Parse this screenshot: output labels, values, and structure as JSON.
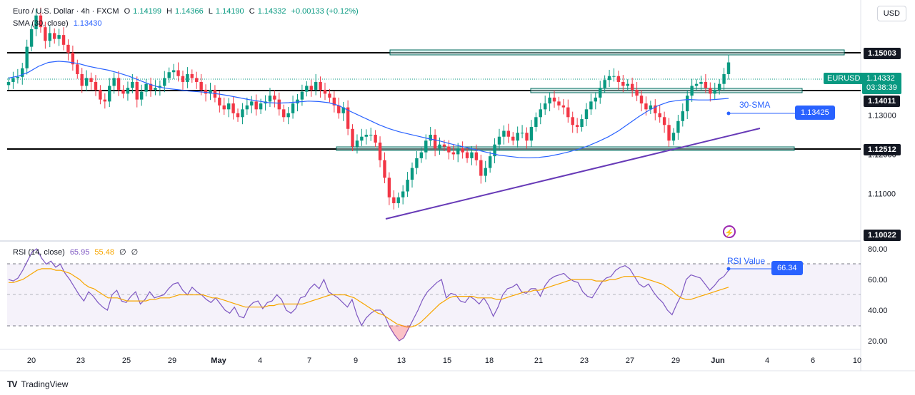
{
  "header": {
    "symbol": "Euro / U.S. Dollar · 4h · FXCM",
    "o_label": "O",
    "o": "1.14199",
    "h_label": "H",
    "h": "1.14366",
    "l_label": "L",
    "l": "1.14190",
    "c_label": "C",
    "c": "1.14332",
    "change": "+0.00133 (+0.12%)",
    "sma_label": "SMA (30, close)",
    "sma_value": "1.13430",
    "rsi_label": "RSI (14, close)",
    "rsi_value": "65.95",
    "rsi_ma": "55.48",
    "rsi_x1": "∅",
    "rsi_x2": "∅"
  },
  "currency_button": "USD",
  "price_tag": {
    "symbol": "EURUSD",
    "price": "1.14332",
    "countdown": "03:38:39"
  },
  "levels": [
    "1.15003",
    "1.14011",
    "1.12512",
    "1.10022"
  ],
  "annotations": {
    "sma_label": "30-SMA",
    "sma_value": "1.13425",
    "rsi_label": "RSI Value",
    "rsi_value": "66.34"
  },
  "footer": {
    "brand": "TradingView",
    "logo": "TV"
  },
  "colors": {
    "up": "#089981",
    "down": "#f23645",
    "sma": "#2962ff",
    "rsi": "#7e57c2",
    "rsi_ma": "#f7a600",
    "trend": "#673ab7"
  },
  "chart_data": {
    "type": "line",
    "main": {
      "y_ticks": [
        "1.13000",
        "1.12000",
        "1.11000"
      ],
      "x_ticks": [
        "20",
        "23",
        "25",
        "29",
        "May",
        "4",
        "7",
        "9",
        "13",
        "15",
        "18",
        "21",
        "23",
        "27",
        "29",
        "Jun",
        "4",
        "6",
        "10"
      ],
      "close": [
        1.1385,
        1.1395,
        1.1398,
        1.142,
        1.1475,
        1.152,
        1.1555,
        1.1525,
        1.149,
        1.151,
        1.1495,
        1.1505,
        1.148,
        1.146,
        1.143,
        1.1405,
        1.1375,
        1.1395,
        1.1385,
        1.1365,
        1.134,
        1.1335,
        1.1375,
        1.1395,
        1.1365,
        1.1355,
        1.137,
        1.1385,
        1.134,
        1.136,
        1.138,
        1.1365,
        1.137,
        1.1375,
        1.1395,
        1.141,
        1.1415,
        1.14,
        1.1385,
        1.1405,
        1.1395,
        1.1385,
        1.1365,
        1.1355,
        1.1365,
        1.1345,
        1.1325,
        1.1315,
        1.133,
        1.1305,
        1.1295,
        1.1315,
        1.1325,
        1.1335,
        1.1315,
        1.133,
        1.1335,
        1.135,
        1.134,
        1.1315,
        1.1295,
        1.1305,
        1.133,
        1.134,
        1.136,
        1.1375,
        1.1365,
        1.1385,
        1.1365,
        1.1355,
        1.1345,
        1.1325,
        1.1305,
        1.132,
        1.1265,
        1.122,
        1.1235,
        1.1245,
        1.125,
        1.125,
        1.123,
        1.1185,
        1.114,
        1.109,
        1.1075,
        1.109,
        1.1105,
        1.1135,
        1.1165,
        1.119,
        1.1205,
        1.1235,
        1.125,
        1.1215,
        1.1225,
        1.122,
        1.1205,
        1.12,
        1.1215,
        1.1205,
        1.119,
        1.1205,
        1.1185,
        1.1145,
        1.1165,
        1.1195,
        1.1225,
        1.1245,
        1.126,
        1.1245,
        1.1235,
        1.1255,
        1.1255,
        1.1235,
        1.127,
        1.1295,
        1.1315,
        1.133,
        1.1345,
        1.1335,
        1.1325,
        1.132,
        1.1295,
        1.1275,
        1.127,
        1.129,
        1.1315,
        1.1335,
        1.1345,
        1.137,
        1.139,
        1.14,
        1.14,
        1.1385,
        1.1375,
        1.138,
        1.1365,
        1.135,
        1.133,
        1.1315,
        1.1325,
        1.1305,
        1.1295,
        1.1275,
        1.1235,
        1.1255,
        1.1285,
        1.131,
        1.135,
        1.1375,
        1.138,
        1.1385,
        1.137,
        1.1355,
        1.1365,
        1.138,
        1.1405,
        1.1435
      ],
      "sma": [
        1.1395,
        1.14,
        1.141,
        1.1425,
        1.1435,
        1.1438,
        1.1436,
        1.1432,
        1.1425,
        1.142,
        1.1415,
        1.1408,
        1.14,
        1.139,
        1.138,
        1.1372,
        1.1368,
        1.1365,
        1.1362,
        1.136,
        1.1358,
        1.1354,
        1.135,
        1.1345,
        1.134,
        1.1336,
        1.1332,
        1.1331,
        1.1332,
        1.1334,
        1.1336,
        1.1335,
        1.1332,
        1.1325,
        1.1312,
        1.13,
        1.1288,
        1.1276,
        1.1266,
        1.1258,
        1.1252,
        1.1246,
        1.124,
        1.1235,
        1.1228,
        1.1222,
        1.1216,
        1.121,
        1.1204,
        1.1198,
        1.1195,
        1.1192,
        1.1191,
        1.1192,
        1.1195,
        1.12,
        1.1206,
        1.1213,
        1.1222,
        1.1233,
        1.1245,
        1.126,
        1.1278,
        1.1296,
        1.1312,
        1.1325,
        1.1334,
        1.1338,
        1.134,
        1.1339,
        1.1339,
        1.1341,
        1.1343
      ],
      "rsi": [
        60,
        59,
        61,
        66,
        72,
        78,
        80,
        74,
        70,
        72,
        68,
        70,
        64,
        60,
        55,
        50,
        46,
        52,
        49,
        45,
        42,
        40,
        50,
        53,
        46,
        45,
        49,
        52,
        44,
        47,
        52,
        48,
        49,
        50,
        54,
        57,
        58,
        53,
        50,
        55,
        52,
        50,
        47,
        45,
        48,
        44,
        40,
        38,
        42,
        36,
        35,
        42,
        45,
        46,
        41,
        45,
        46,
        50,
        47,
        40,
        38,
        41,
        48,
        49,
        54,
        57,
        54,
        60,
        52,
        50,
        48,
        45,
        42,
        47,
        37,
        30,
        35,
        38,
        40,
        40,
        36,
        29,
        24,
        20,
        22,
        28,
        34,
        40,
        47,
        52,
        55,
        58,
        60,
        48,
        51,
        50,
        46,
        45,
        49,
        47,
        44,
        48,
        43,
        36,
        42,
        50,
        54,
        55,
        57,
        52,
        51,
        54,
        54,
        49,
        56,
        60,
        62,
        63,
        64,
        61,
        59,
        58,
        52,
        49,
        48,
        53,
        58,
        61,
        62,
        66,
        68,
        69,
        67,
        62,
        57,
        55,
        57,
        52,
        48,
        45,
        40,
        37,
        44,
        50,
        60,
        63,
        62,
        61,
        57,
        53,
        56,
        60,
        62,
        66
      ],
      "rsi_ma": [
        58,
        58,
        59,
        60,
        62,
        64,
        66,
        67,
        67,
        67,
        66,
        66,
        65,
        64,
        62,
        60,
        57,
        55,
        54,
        52,
        50,
        48,
        48,
        48,
        47,
        46,
        46,
        46,
        46,
        46,
        47,
        47,
        48,
        48,
        48,
        49,
        50,
        50,
        50,
        50,
        50,
        50,
        49,
        48,
        48,
        47,
        46,
        45,
        44,
        43,
        42,
        42,
        42,
        42,
        42,
        43,
        43,
        44,
        44,
        44,
        44,
        44,
        44,
        45,
        46,
        47,
        48,
        49,
        50,
        50,
        50,
        50,
        49,
        48,
        46,
        44,
        42,
        40,
        38,
        37,
        35,
        33,
        31,
        30,
        29,
        29,
        30,
        32,
        35,
        38,
        41,
        44,
        46,
        48,
        49,
        49,
        49,
        49,
        49,
        48,
        48,
        48,
        48,
        47,
        47,
        48,
        49,
        50,
        51,
        52,
        52,
        53,
        53,
        54,
        55,
        56,
        57,
        58,
        59,
        60,
        60,
        60,
        60,
        60,
        59,
        59,
        59,
        60,
        60,
        61,
        62,
        62,
        62,
        62,
        61,
        60,
        59,
        58,
        57,
        55,
        53,
        50,
        48,
        47,
        47,
        48,
        49,
        50,
        51,
        52,
        53,
        54,
        55
      ],
      "rsi_ticks": [
        "80.00",
        "60.00",
        "40.00",
        "20.00"
      ]
    }
  }
}
